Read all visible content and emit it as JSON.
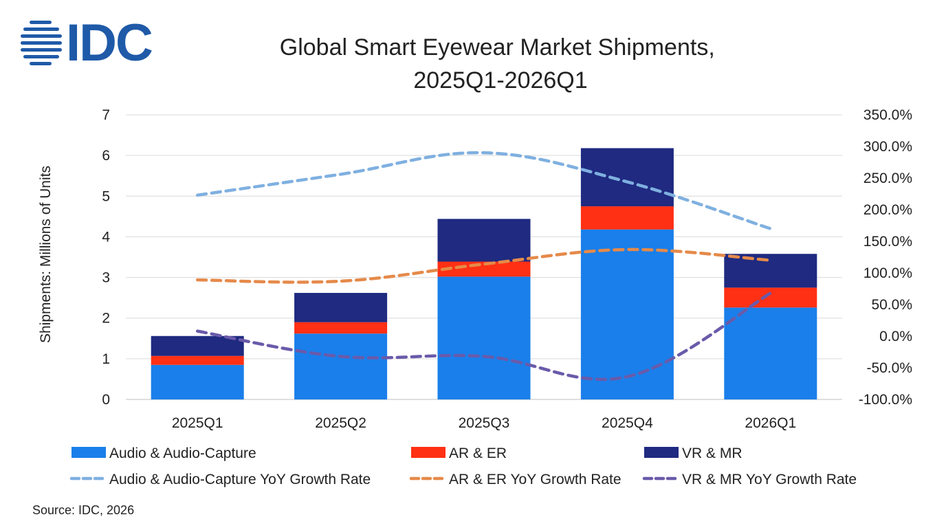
{
  "logo": {
    "text": "IDC",
    "color": "#1f5aa8"
  },
  "footer": {
    "source": "Source: IDC, 2026"
  },
  "chart_data": {
    "type": "bar",
    "stacked": true,
    "title": "Global Smart Eyewear Market Shipments,\n2025Q1-2026Q1",
    "categories": [
      "2025Q1",
      "2025Q2",
      "2025Q3",
      "2025Q4",
      "2026Q1"
    ],
    "ylabel": "Shipments: Millions of Units",
    "ylim": [
      0,
      7
    ],
    "yticks": [
      0,
      1,
      2,
      3,
      4,
      5,
      6,
      7
    ],
    "y2lim": [
      -100,
      350
    ],
    "y2ticks": [
      "-100.0%",
      "-50.0%",
      "0.0%",
      "50.0%",
      "100.0%",
      "150.0%",
      "200.0%",
      "250.0%",
      "300.0%",
      "350.0%"
    ],
    "grid": true,
    "legend_position": "bottom",
    "series": [
      {
        "name": "Audio & Audio-Capture",
        "kind": "bar",
        "color": "#1a7fea",
        "values": [
          0.85,
          1.62,
          3.02,
          4.18,
          2.26
        ]
      },
      {
        "name": "AR & ER",
        "kind": "bar",
        "color": "#ff3014",
        "values": [
          0.22,
          0.28,
          0.37,
          0.57,
          0.49
        ]
      },
      {
        "name": "VR & MR",
        "kind": "bar",
        "color": "#1f2a80",
        "values": [
          0.49,
          0.72,
          1.05,
          1.43,
          0.83
        ]
      },
      {
        "name": "Audio & Audio-Capture YoY Growth Rate",
        "kind": "line",
        "axis": "y2",
        "color": "#7fb0e0",
        "values": [
          223,
          256,
          290,
          244,
          170
        ]
      },
      {
        "name": "AR & ER YoY Growth Rate",
        "kind": "line",
        "axis": "y2",
        "color": "#e58a4a",
        "values": [
          89,
          87,
          114,
          137,
          120
        ]
      },
      {
        "name": "VR & MR YoY Growth Rate",
        "kind": "line",
        "axis": "y2",
        "color": "#6a5aaa",
        "values": [
          8,
          -32,
          -32,
          -64,
          68
        ]
      }
    ]
  }
}
